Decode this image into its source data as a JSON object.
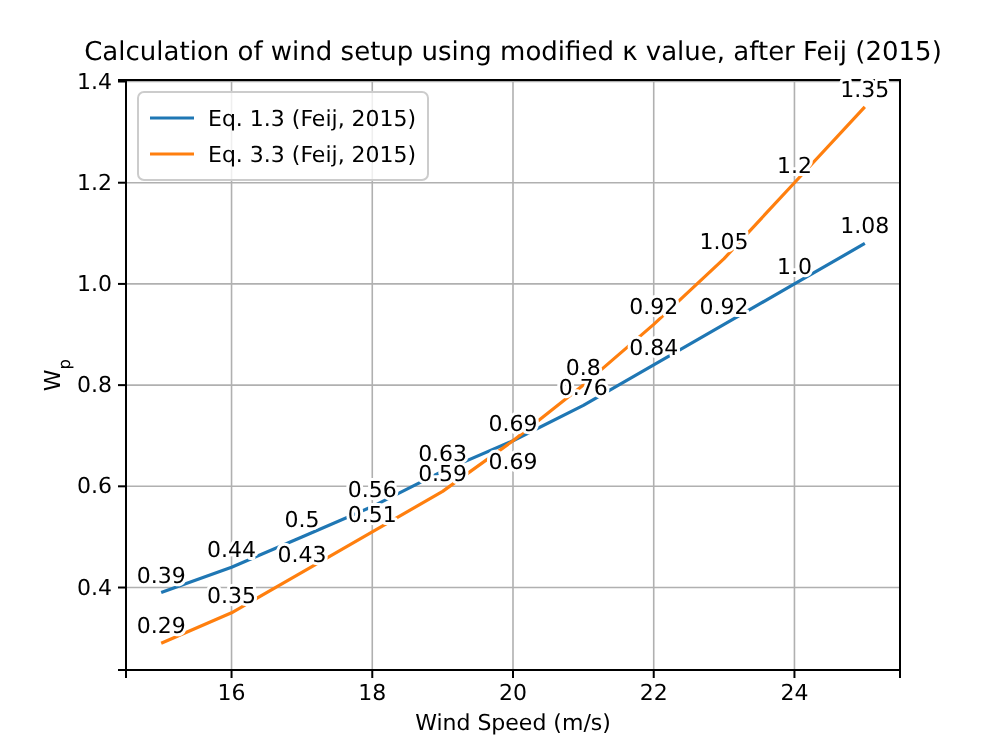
{
  "chart_data": {
    "type": "line",
    "title": "Calculation of wind setup using modified κ value, after Feij (2015)",
    "xlabel": "Wind Speed (m/s)",
    "ylabel": "W$_{p}$",
    "x": [
      15,
      16,
      17,
      18,
      19,
      20,
      21,
      22,
      23,
      24,
      25
    ],
    "series": [
      {
        "name": "Eq. 1.3 (Feij, 2015)",
        "color": "#1f77b4",
        "values": [
          0.39,
          0.44,
          0.5,
          0.56,
          0.63,
          0.69,
          0.76,
          0.84,
          0.92,
          1.0,
          1.08
        ],
        "value_labels": [
          "0.39",
          "0.44",
          "0.5",
          "0.56",
          "0.63",
          "0.69",
          "0.76",
          "0.84",
          "0.92",
          "1.0",
          "1.08"
        ]
      },
      {
        "name": "Eq. 3.3 (Feij, 2015)",
        "color": "#ff7f0e",
        "values": [
          0.29,
          0.35,
          0.43,
          0.51,
          0.59,
          0.69,
          0.8,
          0.92,
          1.05,
          1.2,
          1.35
        ],
        "value_labels": [
          "0.29",
          "0.35",
          "0.43",
          "0.51",
          "0.59",
          "0.69",
          "0.8",
          "0.92",
          "1.05",
          "1.2",
          "1.35"
        ]
      }
    ],
    "xlim": [
      14.5,
      25.5
    ],
    "xticks": [
      16,
      18,
      20,
      22,
      24
    ],
    "ylim": [
      0.237,
      1.403
    ],
    "yticks": [
      {
        "value": 0.4,
        "label": "0.4"
      },
      {
        "value": 0.6,
        "label": "0.6"
      },
      {
        "value": 0.8,
        "label": "0.8"
      },
      {
        "value": 1.0,
        "label": "1.0"
      },
      {
        "value": 1.2,
        "label": "1.2"
      },
      {
        "value": 1.4,
        "label": "1.4"
      }
    ],
    "grid": true,
    "legend": "top left",
    "marker": "none",
    "line_style": "solid"
  }
}
